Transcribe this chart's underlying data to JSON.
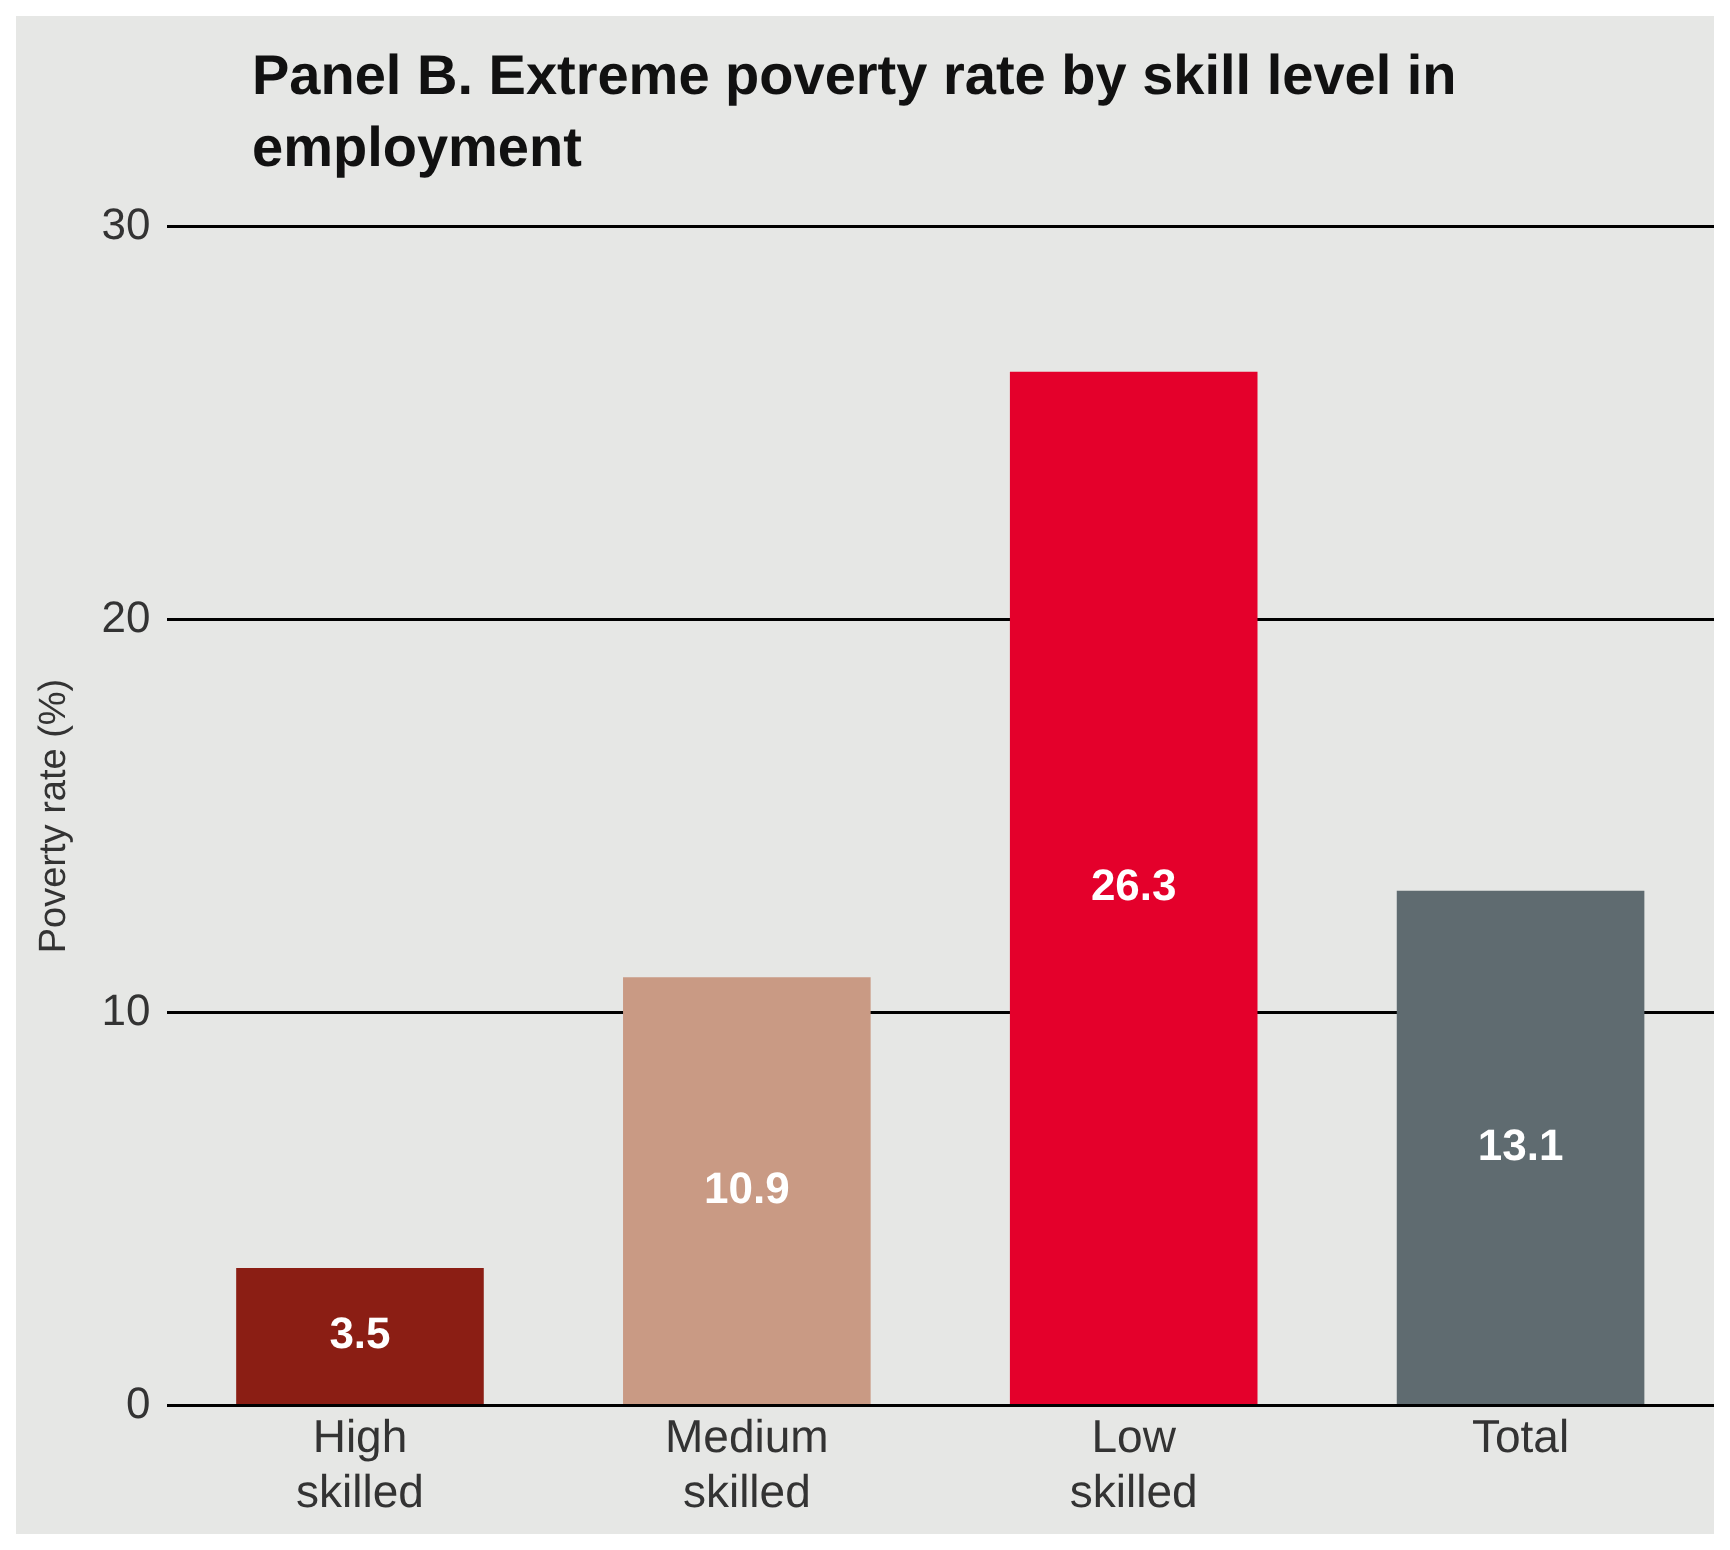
{
  "chart_data": {
    "type": "bar",
    "title": "Panel B.  Extreme poverty rate by skill level in employment",
    "ylabel": "Poverty rate (%)",
    "categories": [
      "High skilled",
      "Medium skilled",
      "Low skilled",
      "Total"
    ],
    "values": [
      3.5,
      10.9,
      26.3,
      13.1
    ],
    "colors": [
      "#8b1e14",
      "#c99a84",
      "#e4002b",
      "#5f6b70"
    ],
    "ylim": [
      0,
      30
    ],
    "yticks": [
      0,
      10,
      20,
      30
    ],
    "grid": "y",
    "legend": false,
    "data_labels": true
  }
}
